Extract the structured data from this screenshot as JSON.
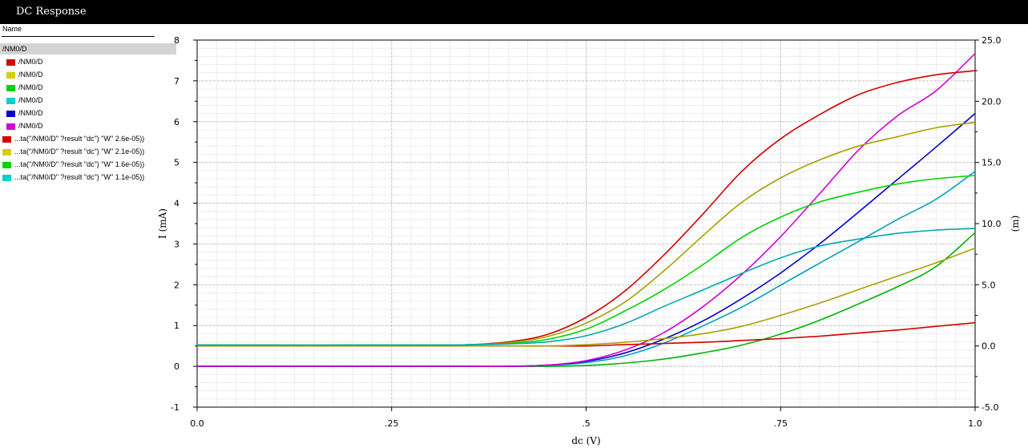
{
  "window": {
    "title": "DC Response"
  },
  "legend": {
    "header": "Name",
    "group": "/NM0/D",
    "items": [
      {
        "label": "/NM0/D",
        "color": "#d40000"
      },
      {
        "label": "/NM0/D",
        "color": "#d4d000"
      },
      {
        "label": "/NM0/D",
        "color": "#00d400"
      },
      {
        "label": "/NM0/D",
        "color": "#00d0d0"
      },
      {
        "label": "/NM0/D",
        "color": "#0000d4"
      },
      {
        "label": "/NM0/D",
        "color": "#d400d4"
      },
      {
        "label": "...ta(\"/NM0/D\" ?result \"dc\") \"W\" 2.6e-05))",
        "color": "#d40000"
      },
      {
        "label": "...ta(\"/NM0/D\" ?result \"dc\") \"W\" 2.1e-05))",
        "color": "#d4d000"
      },
      {
        "label": "...ta(\"/NM0/D\" ?result \"dc\") \"W\" 1.6e-05))",
        "color": "#00d400"
      },
      {
        "label": "...ta(\"/NM0/D\" ?result \"dc\") \"W\" 1.1e-05))",
        "color": "#00d0d0"
      }
    ]
  },
  "chart_data": {
    "type": "line",
    "xlabel": "dc (V)",
    "ylabel_left": "I (mA)",
    "ylabel_right": "(m)",
    "xlim": [
      0,
      1.0
    ],
    "ylim_left": [
      -1,
      8
    ],
    "ylim_right": [
      -5.0,
      25.0
    ],
    "x_ticks": [
      {
        "value": 0.0,
        "label": "0.0"
      },
      {
        "value": 0.25,
        "label": ".25"
      },
      {
        "value": 0.5,
        "label": ".5"
      },
      {
        "value": 0.75,
        "label": ".75"
      },
      {
        "value": 1.0,
        "label": "1.0"
      }
    ],
    "y_left_ticks": [
      {
        "value": -1,
        "label": "-1"
      },
      {
        "value": 0,
        "label": "0"
      },
      {
        "value": 1,
        "label": "1"
      },
      {
        "value": 2,
        "label": "2"
      },
      {
        "value": 3,
        "label": "3"
      },
      {
        "value": 4,
        "label": "4"
      },
      {
        "value": 5,
        "label": "5"
      },
      {
        "value": 6,
        "label": "6"
      },
      {
        "value": 7,
        "label": "7"
      },
      {
        "value": 8,
        "label": "8"
      }
    ],
    "y_right_ticks": [
      {
        "value": -5.0,
        "label": "-5.0"
      },
      {
        "value": 0.0,
        "label": "0.0"
      },
      {
        "value": 5.0,
        "label": "5.0"
      },
      {
        "value": 10.0,
        "label": "10.0"
      },
      {
        "value": 15.0,
        "label": "15.0"
      },
      {
        "value": 20.0,
        "label": "20.0"
      },
      {
        "value": 25.0,
        "label": "25.0"
      }
    ],
    "grid": true,
    "series": [
      {
        "axis": "left",
        "color": "#00b400",
        "x": [
          0,
          0.3,
          0.35,
          0.4,
          0.45,
          0.5,
          0.55,
          0.6,
          0.65,
          0.7,
          0.75,
          0.8,
          0.85,
          0.9,
          0.95,
          1.0
        ],
        "y": [
          0,
          0,
          0,
          0,
          0,
          0.02,
          0.08,
          0.18,
          0.33,
          0.52,
          0.79,
          1.13,
          1.53,
          1.95,
          2.45,
          3.28
        ]
      },
      {
        "axis": "left",
        "color": "#00a0c0",
        "x": [
          0,
          0.3,
          0.35,
          0.4,
          0.45,
          0.5,
          0.55,
          0.6,
          0.65,
          0.7,
          0.75,
          0.8,
          0.85,
          0.9,
          0.95,
          1.0
        ],
        "y": [
          0,
          0,
          0,
          0,
          0.02,
          0.09,
          0.26,
          0.57,
          0.99,
          1.45,
          1.99,
          2.53,
          3.06,
          3.6,
          4.1,
          4.78
        ]
      },
      {
        "axis": "left",
        "color": "#0000d4",
        "x": [
          0,
          0.3,
          0.35,
          0.4,
          0.45,
          0.5,
          0.55,
          0.6,
          0.65,
          0.7,
          0.75,
          0.8,
          0.85,
          0.9,
          0.95,
          1.0
        ],
        "y": [
          0,
          0,
          0,
          0,
          0.03,
          0.12,
          0.33,
          0.67,
          1.11,
          1.66,
          2.29,
          3.0,
          3.78,
          4.58,
          5.38,
          6.2
        ]
      },
      {
        "axis": "left",
        "color": "#d400d4",
        "x": [
          0,
          0.3,
          0.35,
          0.4,
          0.45,
          0.5,
          0.55,
          0.6,
          0.65,
          0.7,
          0.75,
          0.8,
          0.85,
          0.9,
          0.95,
          1.0
        ],
        "y": [
          0,
          0,
          0,
          0,
          0.03,
          0.14,
          0.4,
          0.83,
          1.46,
          2.25,
          3.18,
          4.23,
          5.3,
          6.14,
          6.76,
          7.67
        ]
      },
      {
        "axis": "right",
        "color": "#d40000",
        "x": [
          0,
          0.3,
          0.35,
          0.4,
          0.45,
          0.5,
          0.55,
          0.6,
          0.65,
          0.7,
          0.75,
          0.8,
          0.85,
          0.9,
          0.95,
          1.0
        ],
        "y": [
          0,
          0,
          0,
          0,
          0,
          0,
          0.1,
          0.2,
          0.3,
          0.45,
          0.6,
          0.8,
          1.05,
          1.3,
          1.6,
          1.9
        ]
      },
      {
        "axis": "right",
        "color": "#a8a000",
        "x": [
          0,
          0.3,
          0.35,
          0.4,
          0.45,
          0.5,
          0.55,
          0.6,
          0.65,
          0.7,
          0.75,
          0.8,
          0.85,
          0.9,
          0.95,
          1.0
        ],
        "y": [
          0,
          0,
          0,
          0,
          0,
          0.1,
          0.3,
          0.6,
          1.0,
          1.6,
          2.5,
          3.5,
          4.6,
          5.7,
          6.8,
          8.0
        ]
      },
      {
        "axis": "left",
        "color": "#d40000",
        "x": [
          0,
          0.3,
          0.35,
          0.4,
          0.45,
          0.5,
          0.55,
          0.6,
          0.65,
          0.7,
          0.75,
          0.8,
          0.85,
          0.9,
          0.95,
          1.0
        ],
        "y": [
          0.52,
          0.52,
          0.53,
          0.6,
          0.78,
          1.2,
          1.85,
          2.73,
          3.73,
          4.78,
          5.58,
          6.17,
          6.66,
          6.96,
          7.15,
          7.25
        ]
      },
      {
        "axis": "left",
        "color": "#a8a000",
        "x": [
          0,
          0.3,
          0.35,
          0.4,
          0.45,
          0.5,
          0.55,
          0.6,
          0.65,
          0.7,
          0.75,
          0.8,
          0.85,
          0.9,
          0.95,
          1.0
        ],
        "y": [
          0.52,
          0.52,
          0.53,
          0.58,
          0.73,
          1.06,
          1.58,
          2.34,
          3.2,
          4.02,
          4.62,
          5.06,
          5.4,
          5.63,
          5.85,
          5.98
        ]
      },
      {
        "axis": "left",
        "color": "#00d400",
        "x": [
          0,
          0.3,
          0.35,
          0.4,
          0.45,
          0.5,
          0.55,
          0.6,
          0.65,
          0.7,
          0.75,
          0.8,
          0.85,
          0.9,
          0.95,
          1.0
        ],
        "y": [
          0.52,
          0.52,
          0.53,
          0.56,
          0.66,
          0.91,
          1.36,
          1.88,
          2.49,
          3.16,
          3.66,
          4.03,
          4.27,
          4.47,
          4.6,
          4.68
        ]
      },
      {
        "axis": "left",
        "color": "#00a8b0",
        "x": [
          0,
          0.3,
          0.35,
          0.4,
          0.45,
          0.5,
          0.55,
          0.6,
          0.65,
          0.7,
          0.75,
          0.8,
          0.85,
          0.9,
          0.95,
          1.0
        ],
        "y": [
          0.52,
          0.52,
          0.53,
          0.55,
          0.6,
          0.75,
          1.05,
          1.47,
          1.87,
          2.28,
          2.66,
          2.95,
          3.12,
          3.26,
          3.34,
          3.38
        ]
      }
    ]
  }
}
